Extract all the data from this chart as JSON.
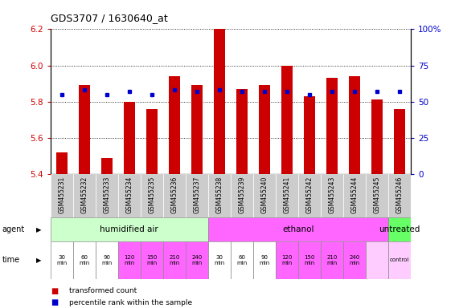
{
  "title": "GDS3707 / 1630640_at",
  "samples": [
    "GSM455231",
    "GSM455232",
    "GSM455233",
    "GSM455234",
    "GSM455235",
    "GSM455236",
    "GSM455237",
    "GSM455238",
    "GSM455239",
    "GSM455240",
    "GSM455241",
    "GSM455242",
    "GSM455243",
    "GSM455244",
    "GSM455245",
    "GSM455246"
  ],
  "bar_values": [
    5.52,
    5.89,
    5.49,
    5.8,
    5.76,
    5.94,
    5.89,
    6.22,
    5.87,
    5.89,
    6.0,
    5.83,
    5.93,
    5.94,
    5.81,
    5.76
  ],
  "dot_values": [
    55,
    58,
    55,
    57,
    55,
    58,
    57,
    58,
    57,
    57,
    57,
    55,
    57,
    57,
    57,
    57
  ],
  "bar_bottom": 5.4,
  "ylim": [
    5.4,
    6.2
  ],
  "y2lim": [
    0,
    100
  ],
  "yticks": [
    5.4,
    5.6,
    5.8,
    6.0,
    6.2
  ],
  "y2ticks": [
    0,
    25,
    50,
    75,
    100
  ],
  "bar_color": "#cc0000",
  "dot_color": "#0000cc",
  "agent_groups": [
    {
      "label": "humidified air",
      "start": 0,
      "end": 7,
      "color": "#ccffcc"
    },
    {
      "label": "ethanol",
      "start": 7,
      "end": 15,
      "color": "#ff66ff"
    },
    {
      "label": "untreated",
      "start": 15,
      "end": 16,
      "color": "#66ff66"
    }
  ],
  "time_labels": [
    "30\nmin",
    "60\nmin",
    "90\nmin",
    "120\nmin",
    "150\nmin",
    "210\nmin",
    "240\nmin",
    "30\nmin",
    "60\nmin",
    "90\nmin",
    "120\nmin",
    "150\nmin",
    "210\nmin",
    "240\nmin",
    "",
    "control"
  ],
  "time_colors": [
    "#ffffff",
    "#ffffff",
    "#ffffff",
    "#ff66ff",
    "#ff66ff",
    "#ff66ff",
    "#ff66ff",
    "#ffffff",
    "#ffffff",
    "#ffffff",
    "#ff66ff",
    "#ff66ff",
    "#ff66ff",
    "#ff66ff",
    "#ffccff",
    "#ffccff"
  ],
  "agent_label": "agent",
  "time_label": "time",
  "legend_items": [
    {
      "color": "#cc0000",
      "label": "transformed count"
    },
    {
      "color": "#0000cc",
      "label": "percentile rank within the sample"
    }
  ],
  "grid_color": "#000000",
  "plot_bg": "#ffffff",
  "tick_label_color_left": "#cc0000",
  "tick_label_color_right": "#0000cc",
  "sample_bg": "#cccccc"
}
